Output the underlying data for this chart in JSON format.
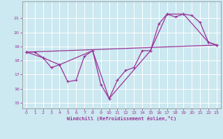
{
  "xlabel": "Windchill (Refroidissement éolien,°C)",
  "bg_color": "#cce8f0",
  "line_color": "#993399",
  "grid_color": "#ffffff",
  "xticks": [
    0,
    1,
    2,
    3,
    4,
    5,
    6,
    7,
    8,
    9,
    10,
    11,
    12,
    13,
    14,
    15,
    16,
    17,
    18,
    19,
    20,
    21,
    22,
    23
  ],
  "yticks": [
    15,
    16,
    17,
    18,
    19,
    20,
    21
  ],
  "ylim": [
    14.6,
    22.2
  ],
  "xlim": [
    -0.5,
    23.5
  ],
  "series1_x": [
    0,
    1,
    2,
    3,
    4,
    5,
    6,
    7,
    8,
    9,
    10,
    11,
    12,
    13,
    14,
    15,
    16,
    17,
    18,
    19,
    20,
    21,
    22,
    23
  ],
  "series1_y": [
    18.6,
    18.6,
    18.2,
    17.5,
    17.7,
    16.5,
    16.6,
    18.3,
    18.7,
    16.3,
    15.3,
    16.6,
    17.3,
    17.5,
    18.7,
    18.7,
    20.6,
    21.3,
    21.1,
    21.3,
    21.2,
    20.7,
    19.3,
    19.1
  ],
  "series2_x": [
    0,
    2,
    4,
    8,
    10,
    15,
    17,
    19,
    22,
    23
  ],
  "series2_y": [
    18.6,
    18.2,
    17.7,
    18.7,
    15.3,
    18.7,
    21.3,
    21.3,
    19.3,
    19.1
  ],
  "series3_x": [
    0,
    23
  ],
  "series3_y": [
    18.6,
    19.1
  ]
}
